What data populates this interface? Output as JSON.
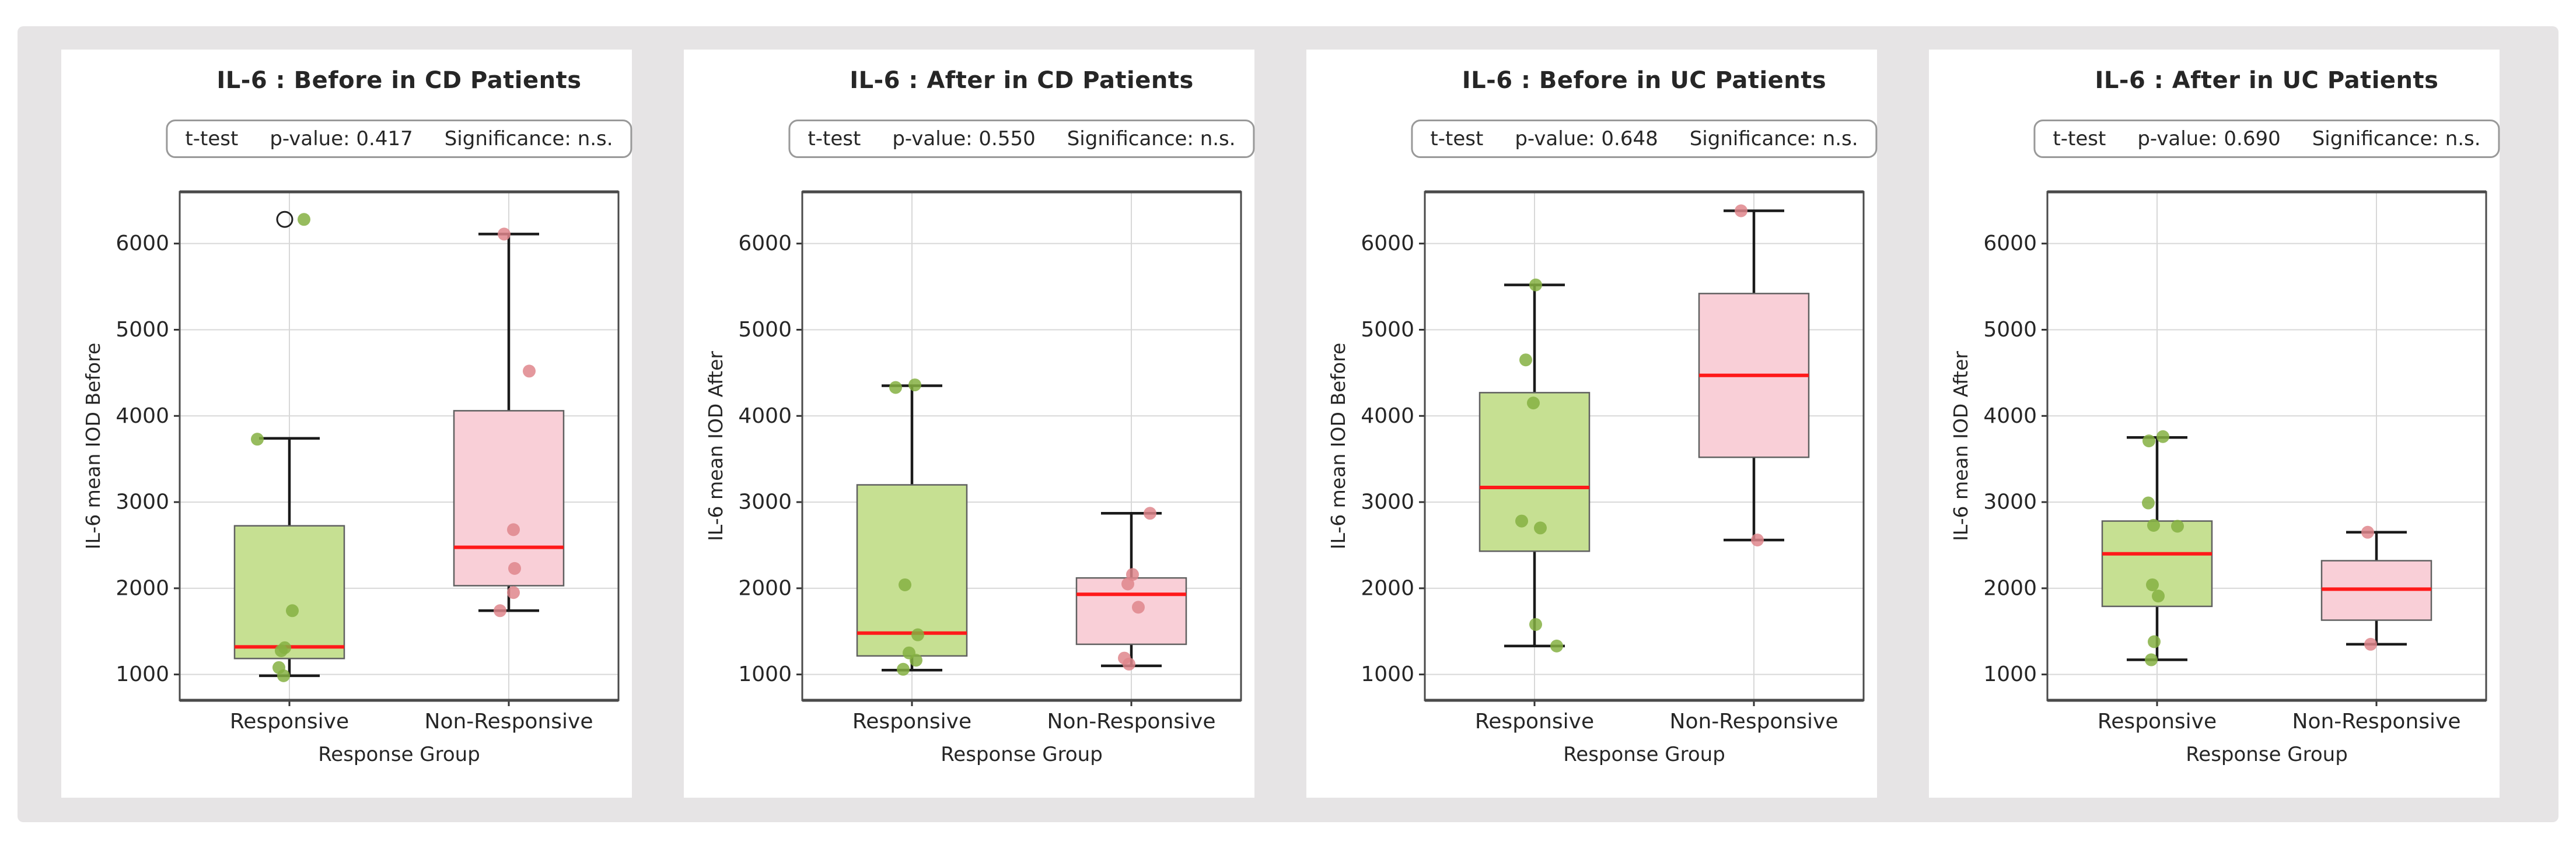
{
  "colors": {
    "page_bg": "#ffffff",
    "panel_area_bg": "#e6e4e5",
    "card_bg": "#ffffff",
    "text": "#262626",
    "grid": "#d8d8d8",
    "spine": "#4a4a4a",
    "tick": "#333333",
    "whisker": "#1a1a1a",
    "box_edge": "#606060",
    "median": "#ff1a1a",
    "green_box": "#c6e092",
    "green_point": "#85b042",
    "pink_box": "#f9cfd7",
    "pink_point": "#df868c",
    "outlier_stroke": "#222222",
    "stat_border": "#999999"
  },
  "chart_data": [
    {
      "type": "box",
      "title": "IL-6 : Before in CD Patients",
      "stat": {
        "test": "t-test",
        "p_value": "p-value: 0.417",
        "significance": "Significance: n.s."
      },
      "xlabel": "Response Group",
      "ylabel": "IL-6 mean IOD Before",
      "ylim": [
        700,
        6600
      ],
      "yticks": [
        1000,
        2000,
        3000,
        4000,
        5000,
        6000
      ],
      "groups": [
        {
          "label": "Responsive",
          "palette": "green",
          "whislo": 985,
          "q1": 1185,
          "med": 1320,
          "q3": 2725,
          "whishi": 3740,
          "fliers": [
            6280
          ],
          "points": [
            [
              6280,
              25
            ],
            [
              3730,
              -55
            ],
            [
              1740,
              5
            ],
            [
              1310,
              -8
            ],
            [
              1275,
              -14
            ],
            [
              1080,
              -18
            ],
            [
              985,
              -10
            ]
          ]
        },
        {
          "label": "Non-Responsive",
          "palette": "pink",
          "whislo": 1740,
          "q1": 2030,
          "med": 2475,
          "q3": 4060,
          "whishi": 6110,
          "fliers": [],
          "points": [
            [
              6110,
              -8
            ],
            [
              4520,
              35
            ],
            [
              2680,
              8
            ],
            [
              2230,
              10
            ],
            [
              1950,
              8
            ],
            [
              1740,
              -15
            ]
          ]
        }
      ]
    },
    {
      "type": "box",
      "title": "IL-6 : After in CD Patients",
      "stat": {
        "test": "t-test",
        "p_value": "p-value: 0.550",
        "significance": "Significance: n.s."
      },
      "xlabel": "Response Group",
      "ylabel": "IL-6 mean IOD After",
      "ylim": [
        700,
        6600
      ],
      "yticks": [
        1000,
        2000,
        3000,
        4000,
        5000,
        6000
      ],
      "groups": [
        {
          "label": "Responsive",
          "palette": "green",
          "whislo": 1050,
          "q1": 1215,
          "med": 1480,
          "q3": 3200,
          "whishi": 4350,
          "fliers": [],
          "points": [
            [
              4360,
              5
            ],
            [
              4330,
              -28
            ],
            [
              2040,
              -12
            ],
            [
              1460,
              10
            ],
            [
              1250,
              -5
            ],
            [
              1165,
              7
            ],
            [
              1060,
              -15
            ]
          ]
        },
        {
          "label": "Non-Responsive",
          "palette": "pink",
          "whislo": 1100,
          "q1": 1350,
          "med": 1930,
          "q3": 2120,
          "whishi": 2870,
          "fliers": [],
          "points": [
            [
              2870,
              32
            ],
            [
              2160,
              2
            ],
            [
              2050,
              -6
            ],
            [
              1780,
              12
            ],
            [
              1190,
              -12
            ],
            [
              1120,
              -4
            ]
          ]
        }
      ]
    },
    {
      "type": "box",
      "title": "IL-6 : Before in UC Patients",
      "stat": {
        "test": "t-test",
        "p_value": "p-value: 0.648",
        "significance": "Significance: n.s."
      },
      "xlabel": "Response Group",
      "ylabel": "IL-6 mean IOD Before",
      "ylim": [
        700,
        6600
      ],
      "yticks": [
        1000,
        2000,
        3000,
        4000,
        5000,
        6000
      ],
      "groups": [
        {
          "label": "Responsive",
          "palette": "green",
          "whislo": 1330,
          "q1": 2430,
          "med": 3170,
          "q3": 4270,
          "whishi": 5520,
          "fliers": [],
          "points": [
            [
              5520,
              2
            ],
            [
              4650,
              -15
            ],
            [
              4150,
              -2
            ],
            [
              2780,
              -22
            ],
            [
              2700,
              10
            ],
            [
              1580,
              2
            ],
            [
              1330,
              38
            ]
          ]
        },
        {
          "label": "Non-Responsive",
          "palette": "pink",
          "whislo": 2560,
          "q1": 3520,
          "med": 4470,
          "q3": 5420,
          "whishi": 6380,
          "fliers": [],
          "points": [
            [
              6380,
              -22
            ],
            [
              2560,
              6
            ]
          ]
        }
      ]
    },
    {
      "type": "box",
      "title": "IL-6 : After in UC Patients",
      "stat": {
        "test": "t-test",
        "p_value": "p-value: 0.690",
        "significance": "Significance: n.s."
      },
      "xlabel": "Response Group",
      "ylabel": "IL-6 mean IOD After",
      "ylim": [
        700,
        6600
      ],
      "yticks": [
        1000,
        2000,
        3000,
        4000,
        5000,
        6000
      ],
      "groups": [
        {
          "label": "Responsive",
          "palette": "green",
          "whislo": 1170,
          "q1": 1790,
          "med": 2400,
          "q3": 2780,
          "whishi": 3750,
          "fliers": [],
          "points": [
            [
              3760,
              10
            ],
            [
              3710,
              -14
            ],
            [
              2990,
              -15
            ],
            [
              2730,
              -6
            ],
            [
              2720,
              35
            ],
            [
              2040,
              -8
            ],
            [
              1910,
              2
            ],
            [
              1380,
              -5
            ],
            [
              1170,
              -10
            ]
          ]
        },
        {
          "label": "Non-Responsive",
          "palette": "pink",
          "whislo": 1350,
          "q1": 1630,
          "med": 1990,
          "q3": 2320,
          "whishi": 2650,
          "fliers": [],
          "points": [
            [
              2650,
              -15
            ],
            [
              1350,
              -10
            ]
          ]
        }
      ]
    }
  ]
}
